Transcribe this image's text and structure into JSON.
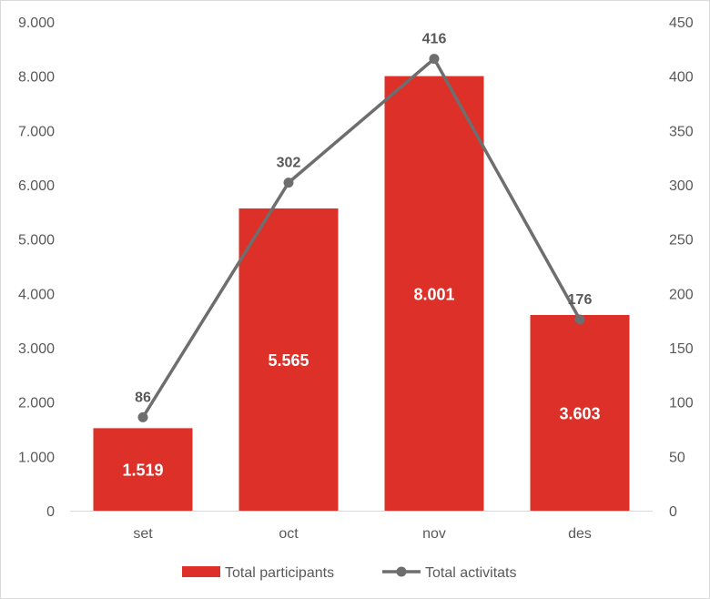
{
  "chart_data": {
    "type": "bar",
    "categories": [
      "set",
      "oct",
      "nov",
      "des"
    ],
    "series": [
      {
        "name": "Total participants",
        "type": "bar",
        "axis": "left",
        "values": [
          1519,
          5565,
          8001,
          3603
        ],
        "labels": [
          "1.519",
          "5.565",
          "8.001",
          "3.603"
        ],
        "color": "#DC3028"
      },
      {
        "name": "Total activitats",
        "type": "line",
        "axis": "right",
        "values": [
          86,
          302,
          416,
          176
        ],
        "labels": [
          "86",
          "302",
          "416",
          "176"
        ],
        "color": "#6E6E6E"
      }
    ],
    "y_left": {
      "min": 0,
      "max": 9000,
      "ticks": [
        0,
        1000,
        2000,
        3000,
        4000,
        5000,
        6000,
        7000,
        8000,
        9000
      ],
      "tick_labels": [
        "0",
        "1.000",
        "2.000",
        "3.000",
        "4.000",
        "5.000",
        "6.000",
        "7.000",
        "8.000",
        "9.000"
      ]
    },
    "y_right": {
      "min": 0,
      "max": 450,
      "ticks": [
        0,
        50,
        100,
        150,
        200,
        250,
        300,
        350,
        400,
        450
      ],
      "tick_labels": [
        "0",
        "50",
        "100",
        "150",
        "200",
        "250",
        "300",
        "350",
        "400",
        "450"
      ]
    },
    "grid": false,
    "legend_position": "bottom"
  }
}
